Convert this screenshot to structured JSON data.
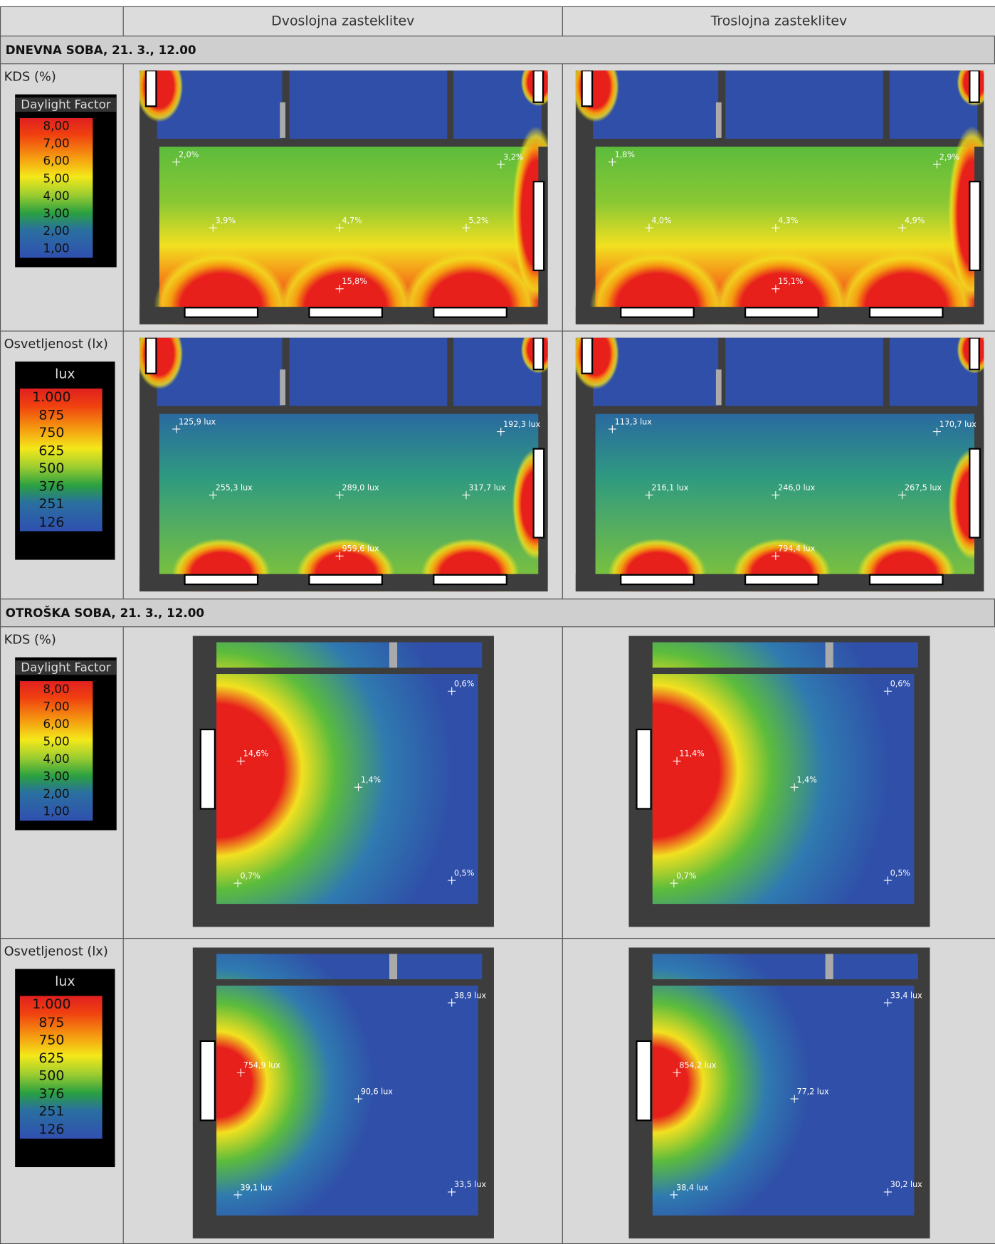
{
  "table": {
    "header": [
      "Dvoslojna zasteklitev",
      "Troslojna zasteklitev"
    ],
    "sections": [
      {
        "title": "DNEVNA SOBA, 21. 3., 12.00",
        "rows": [
          {
            "label": "KDS (%)",
            "legend": {
              "title": "Daylight Factor",
              "values": [
                "8,00",
                "7,00",
                "6,00",
                "5,00",
                "4,00",
                "3,00",
                "2,00",
                "1,00"
              ]
            },
            "cells": [
              {
                "points": [
                  "2,0%",
                  "3,2%",
                  "3,9%",
                  "4,7%",
                  "5,2%",
                  "15,8%"
                ]
              },
              {
                "points": [
                  "1,8%",
                  "2,9%",
                  "4,0%",
                  "4,3%",
                  "4,9%",
                  "15,1%"
                ]
              }
            ]
          },
          {
            "label": "Osvetljenost (lx)",
            "legend": {
              "title": "lux",
              "values": [
                "1.000",
                "875",
                "750",
                "625",
                "500",
                "376",
                "251",
                "126"
              ]
            },
            "cells": [
              {
                "points": [
                  "125,9 lux",
                  "192,3 lux",
                  "255,3 lux",
                  "289,0 lux",
                  "317,7 lux",
                  "959,6 lux"
                ]
              },
              {
                "points": [
                  "113,3 lux",
                  "170,7 lux",
                  "216,1 lux",
                  "246,0 lux",
                  "267,5 lux",
                  "794,4 lux"
                ]
              }
            ]
          }
        ]
      },
      {
        "title": "OTROŠKA SOBA, 21. 3., 12.00",
        "rows": [
          {
            "label": "KDS (%)",
            "legend": {
              "title": "Daylight Factor",
              "values": [
                "8,00",
                "7,00",
                "6,00",
                "5,00",
                "4,00",
                "3,00",
                "2,00",
                "1,00"
              ]
            },
            "cells": [
              {
                "points": [
                  "0,6%",
                  "14,6%",
                  "1,4%",
                  "0,7%",
                  "0,5%"
                ]
              },
              {
                "points": [
                  "0,6%",
                  "11,4%",
                  "1,4%",
                  "0,7%",
                  "0,5%"
                ]
              }
            ]
          },
          {
            "label": "Osvetljenost (lx)",
            "legend": {
              "title": "lux",
              "values": [
                "1.000",
                "875",
                "750",
                "625",
                "500",
                "376",
                "251",
                "126"
              ]
            },
            "cells": [
              {
                "points": [
                  "38,9 lux",
                  "754,9 lux",
                  "90,6 lux",
                  "39,1 lux",
                  "33,5 lux"
                ]
              },
              {
                "points": [
                  "33,4 lux",
                  "854,2 lux",
                  "77,2 lux",
                  "38,4 lux",
                  "30,2 lux"
                ]
              }
            ]
          }
        ]
      }
    ]
  }
}
